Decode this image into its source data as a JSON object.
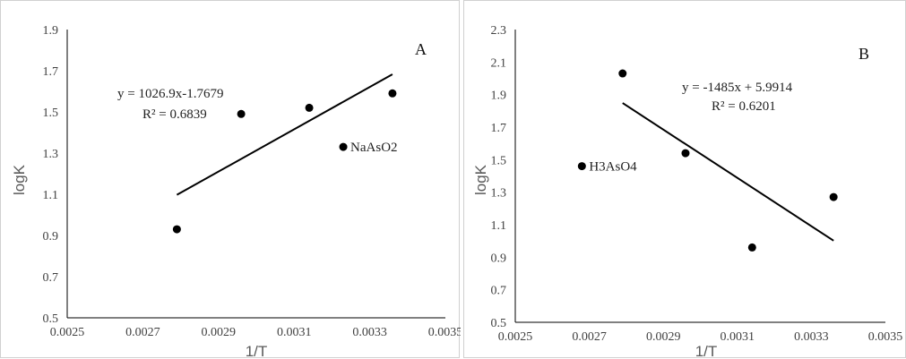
{
  "chart_data": [
    {
      "type": "scatter",
      "panel_letter": "A",
      "xlabel": "1/T",
      "ylabel": "logK",
      "xlim": [
        0.0025,
        0.0035
      ],
      "ylim": [
        0.5,
        1.9
      ],
      "xticks": [
        "0.0025",
        "0.0027",
        "0.0029",
        "0.0031",
        "0.0033",
        "0.0035"
      ],
      "yticks": [
        "0.5",
        "0.7",
        "0.9",
        "1.1",
        "1.3",
        "1.5",
        "1.7",
        "1.9"
      ],
      "points": [
        {
          "x": 0.00279,
          "y": 0.93
        },
        {
          "x": 0.00296,
          "y": 1.49
        },
        {
          "x": 0.00314,
          "y": 1.52
        },
        {
          "x": 0.00336,
          "y": 1.59
        }
      ],
      "labeled_point": {
        "x": 0.00323,
        "y": 1.33,
        "label": "NaAsO2"
      },
      "trendline": {
        "slope": 1026.9,
        "intercept": -1.7679,
        "x_start": 0.00279,
        "x_end": 0.00336
      },
      "equation": "y = 1026.9x-1.7679",
      "r2": "R² = 0.6839",
      "grid": false
    },
    {
      "type": "scatter",
      "panel_letter": "B",
      "xlabel": "1/T",
      "ylabel": "logK",
      "xlim": [
        0.0025,
        0.0035
      ],
      "ylim": [
        0.5,
        2.3
      ],
      "xticks": [
        "0.0025",
        "0.0027",
        "0.0029",
        "0.0031",
        "0.0033",
        "0.0035"
      ],
      "yticks": [
        "0.5",
        "0.7",
        "0.9",
        "1.1",
        "1.3",
        "1.5",
        "1.7",
        "1.9",
        "2.1",
        "2.3"
      ],
      "points": [
        {
          "x": 0.00279,
          "y": 2.03
        },
        {
          "x": 0.00296,
          "y": 1.54
        },
        {
          "x": 0.00314,
          "y": 0.96
        },
        {
          "x": 0.00336,
          "y": 1.27
        }
      ],
      "labeled_point": {
        "x": 0.00268,
        "y": 1.46,
        "label": "H3AsO4"
      },
      "trendline": {
        "slope": -1485,
        "intercept": 5.9914,
        "x_start": 0.00279,
        "x_end": 0.00336
      },
      "equation": "y = -1485x + 5.9914",
      "r2": "R² = 0.6201",
      "grid": false
    }
  ]
}
